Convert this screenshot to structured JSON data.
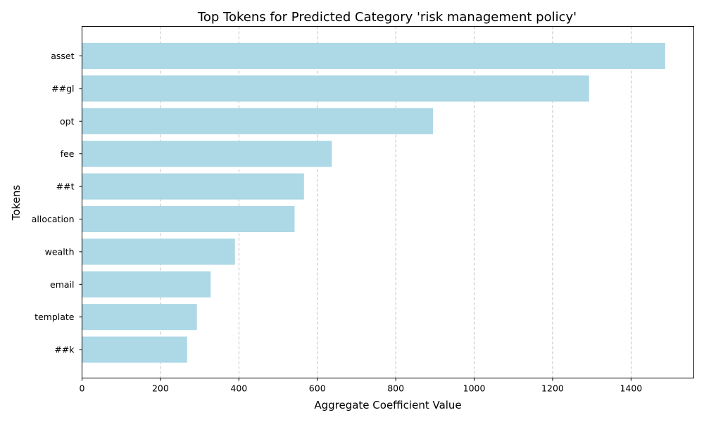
{
  "chart_data": {
    "type": "bar",
    "orientation": "horizontal",
    "title": "Top Tokens for Predicted Category 'risk management policy'",
    "xlabel": "Aggregate Coefficient Value",
    "ylabel": "Tokens",
    "categories": [
      "asset",
      "##gl",
      "opt",
      "fee",
      "##t",
      "allocation",
      "wealth",
      "email",
      "template",
      "##k"
    ],
    "values": [
      1487,
      1293,
      895,
      637,
      566,
      542,
      390,
      328,
      293,
      268
    ],
    "xlim": [
      0,
      1560
    ],
    "xticks": [
      0,
      200,
      400,
      600,
      800,
      1000,
      1200,
      1400
    ],
    "grid": "x-dashed",
    "bar_color": "#add8e6"
  }
}
